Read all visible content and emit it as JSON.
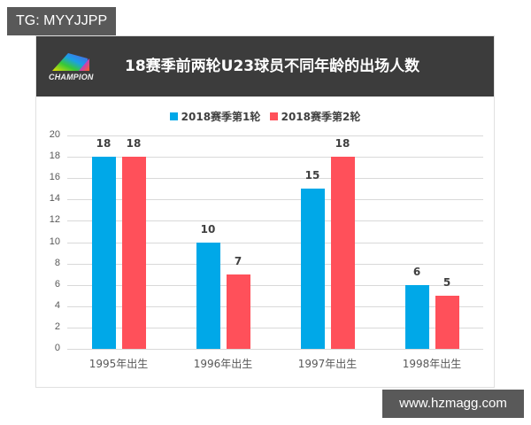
{
  "watermark_top": "TG: MYYJJPP",
  "watermark_bottom": "www.hzmagg.com",
  "logo_text": "CHAMPION",
  "colors": {
    "series1": "#00a8e8",
    "series2": "#ff505a",
    "header_bg": "#3c3c3c"
  },
  "chart_data": {
    "type": "bar",
    "title": "18赛季前两轮U23球员不同年龄的出场人数",
    "categories": [
      "1995年出生",
      "1996年出生",
      "1997年出生",
      "1998年出生"
    ],
    "series": [
      {
        "name": "2018赛季第1轮",
        "color": "#00a8e8",
        "values": [
          18,
          10,
          15,
          6
        ]
      },
      {
        "name": "2018赛季第2轮",
        "color": "#ff505a",
        "values": [
          18,
          7,
          18,
          5
        ]
      }
    ],
    "xlabel": "",
    "ylabel": "",
    "ylim": [
      0,
      20
    ],
    "yticks": [
      0,
      2,
      4,
      6,
      8,
      10,
      12,
      14,
      16,
      18,
      20
    ],
    "grid": true,
    "legend_position": "top",
    "data_labels": true
  }
}
